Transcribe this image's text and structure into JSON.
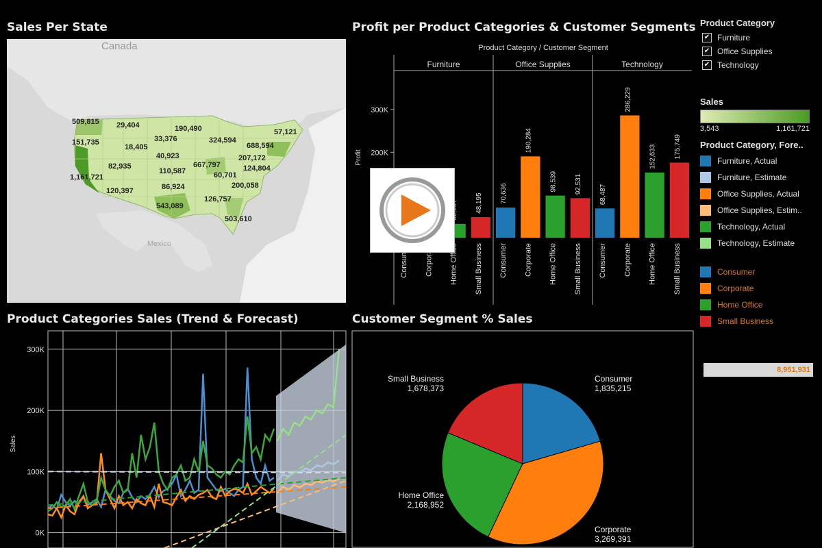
{
  "panels": {
    "map_title": "Sales Per State",
    "profit_title": "Profit per Product Categories & Customer Segments",
    "trend_title": "Product Categories Sales (Trend & Forecast)",
    "pie_title": "Customer Segment % Sales"
  },
  "map": {
    "labels": {
      "canada": "Canada",
      "mexico": "Mexico"
    },
    "state_values": [
      "509,815",
      "29,404",
      "190,490",
      "57,121",
      "151,735",
      "18,405",
      "33,376",
      "324,594",
      "688,594",
      "40,923",
      "207,172",
      "82,935",
      "110,587",
      "667,797",
      "124,804",
      "1,161,721",
      "60,701",
      "86,924",
      "200,058",
      "120,397",
      "543,089",
      "126,757",
      "503,610"
    ]
  },
  "filters": {
    "title": "Product Category",
    "items": [
      {
        "label": "Furniture",
        "checked": true
      },
      {
        "label": "Office Supplies",
        "checked": true
      },
      {
        "label": "Technology",
        "checked": true
      }
    ]
  },
  "sales_legend": {
    "title": "Sales",
    "min": "3,543",
    "max": "1,161,721",
    "color_min": "#e0ecb5",
    "color_max": "#4c9a24"
  },
  "forecast_legend": {
    "title": "Product Category, Fore..",
    "items": [
      {
        "label": "Furniture, Actual",
        "color": "#1f77b4"
      },
      {
        "label": "Furniture, Estimate",
        "color": "#aec7e8"
      },
      {
        "label": "Office Supplies, Actual",
        "color": "#ff7f0e"
      },
      {
        "label": "Office Supplies, Estim..",
        "color": "#ffbb78"
      },
      {
        "label": "Technology, Actual",
        "color": "#2ca02c"
      },
      {
        "label": "Technology, Estimate",
        "color": "#98df8a"
      }
    ]
  },
  "segment_legend": {
    "items": [
      {
        "label": "Consumer",
        "color": "#1f77b4"
      },
      {
        "label": "Corporate",
        "color": "#ff7f0e"
      },
      {
        "label": "Home Office",
        "color": "#2ca02c"
      },
      {
        "label": "Small Business",
        "color": "#d62728"
      }
    ]
  },
  "total_sales": "8,951,931",
  "chart_data": [
    {
      "type": "bar",
      "title": "Profit per Product Categories & Customer Segments",
      "header": "Product Category  /  Customer Segment",
      "ylabel": "Profit",
      "ylim": [
        0,
        380000
      ],
      "yticks": [
        {
          "v": 200000,
          "label": "200K"
        },
        {
          "v": 300000,
          "label": "300K"
        }
      ],
      "groups": [
        "Furniture",
        "Office Supplies",
        "Technology"
      ],
      "segments": [
        "Consumer",
        "Corporate",
        "Home Office",
        "Small Business"
      ],
      "colors": [
        "#1f77b4",
        "#ff7f0e",
        "#2ca02c",
        "#d62728"
      ],
      "values": [
        {
          "values": [
            null,
            null,
            32387,
            48195
          ],
          "labels": [
            "",
            "",
            "32,387",
            "48,195"
          ]
        },
        {
          "values": [
            70636,
            190284,
            98539,
            92531
          ],
          "labels": [
            "70,636",
            "190,284",
            "98,539",
            "92,531"
          ]
        },
        {
          "values": [
            68487,
            286229,
            152633,
            175749
          ],
          "labels": [
            "68,487",
            "286,229",
            "152,633",
            "175,749"
          ]
        }
      ]
    },
    {
      "type": "line",
      "title": "Product Categories Sales (Trend & Forecast)",
      "ylabel": "Sales",
      "ylim": [
        -25000,
        330000
      ],
      "yticks": [
        {
          "v": 0,
          "label": "0K"
        },
        {
          "v": 100000,
          "label": "100K"
        },
        {
          "v": 200000,
          "label": "200K"
        },
        {
          "v": 300000,
          "label": "300K"
        }
      ],
      "series": [
        {
          "name": "Furniture, Actual",
          "color": "#4a90d0",
          "values": [
            40000,
            45000,
            38000,
            62000,
            50000,
            44000,
            52000,
            48000,
            58000,
            45000,
            50000,
            55000,
            42000,
            70000,
            60000,
            52000,
            48000,
            65000,
            72000,
            58000,
            50000,
            60000,
            55000,
            62000,
            75000,
            58000,
            68000,
            72000,
            80000,
            95000,
            60000,
            70000,
            85000,
            65000,
            70000,
            260000,
            90000,
            80000,
            70000,
            68000,
            72000,
            65000,
            60000,
            70000,
            75000,
            270000,
            120000,
            90000,
            80000,
            110000,
            85000,
            90000
          ]
        },
        {
          "name": "Office Supplies, Actual",
          "color": "#ff8c1a",
          "values": [
            30000,
            28000,
            40000,
            25000,
            45000,
            35000,
            30000,
            50000,
            60000,
            40000,
            45000,
            48000,
            130000,
            70000,
            55000,
            40000,
            60000,
            45000,
            50000,
            40000,
            55000,
            48000,
            45000,
            60000,
            42000,
            80000,
            50000,
            48000,
            45000,
            58000,
            70000,
            52000,
            60000,
            55000,
            62000,
            65000,
            70000,
            58000,
            55000,
            75000,
            60000,
            68000,
            72000,
            70000,
            65000,
            80000,
            62000,
            68000,
            75000,
            70000,
            65000,
            72000
          ]
        },
        {
          "name": "Technology, Actual",
          "color": "#3aa83a",
          "values": [
            35000,
            40000,
            50000,
            42000,
            45000,
            55000,
            38000,
            60000,
            80000,
            50000,
            45000,
            52000,
            90000,
            70000,
            60000,
            75000,
            85000,
            65000,
            70000,
            130000,
            90000,
            160000,
            120000,
            140000,
            180000,
            100000,
            80000,
            70000,
            90000,
            95000,
            110000,
            85000,
            90000,
            120000,
            100000,
            150000,
            110000,
            105000,
            95000,
            90000,
            100000,
            95000,
            110000,
            120000,
            115000,
            190000,
            130000,
            140000,
            120000,
            160000,
            150000,
            170000
          ]
        }
      ],
      "forecast": [
        {
          "name": "Furniture, Estimate",
          "color": "#aec7e8",
          "values": [
            85000,
            95000,
            92000,
            100000,
            98000,
            105000,
            102000,
            110000,
            108000,
            115000,
            112000,
            118000
          ]
        },
        {
          "name": "Office Supplies, Estim..",
          "color": "#ffbb78",
          "values": [
            65000,
            75000,
            70000,
            78000,
            74000,
            80000,
            78000,
            84000,
            82000,
            86000,
            84000,
            88000
          ]
        },
        {
          "name": "Technology, Estimate",
          "color": "#98df8a",
          "values": [
            150000,
            170000,
            160000,
            180000,
            175000,
            190000,
            185000,
            200000,
            195000,
            210000,
            205000,
            300000
          ]
        }
      ]
    },
    {
      "type": "pie",
      "title": "Customer Segment % Sales",
      "slices": [
        {
          "name": "Consumer",
          "value": 1835215,
          "label": "1,835,215",
          "color": "#1f77b4"
        },
        {
          "name": "Corporate",
          "value": 3269391,
          "label": "3,269,391",
          "color": "#ff7f0e"
        },
        {
          "name": "Home Office",
          "value": 2168952,
          "label": "2,168,952",
          "color": "#2ca02c"
        },
        {
          "name": "Small Business",
          "value": 1678373,
          "label": "1,678,373",
          "color": "#d62728"
        }
      ]
    }
  ]
}
